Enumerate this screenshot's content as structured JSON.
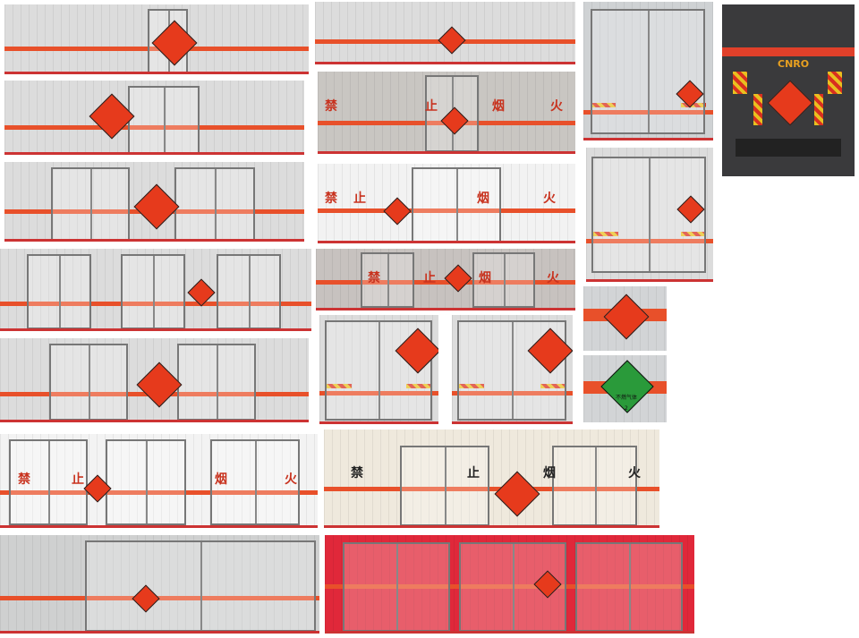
{
  "sign_chars": [
    "禁",
    "止",
    "烟",
    "火"
  ],
  "green_label": {
    "name": "不燃气体",
    "class_number": "2"
  },
  "truck_logo": "CNRO",
  "colors": {
    "stripe": "#e8502a",
    "hazmat_diamond": "#e63a1c",
    "gas_diamond": "#2a9a3a",
    "red_box": "#e0283a"
  }
}
